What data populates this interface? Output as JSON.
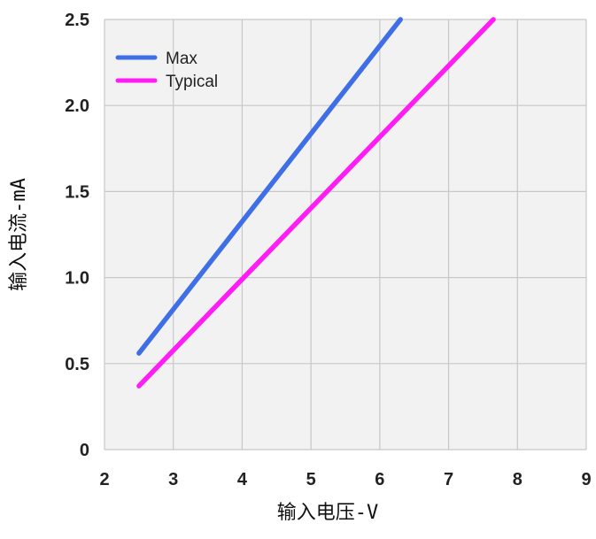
{
  "chart_data": {
    "type": "line",
    "title": "",
    "xlabel": "输入电压-V",
    "ylabel": "输入电流-mA",
    "xlim": [
      2,
      9
    ],
    "ylim": [
      0,
      2.5
    ],
    "x_ticks": [
      "2",
      "3",
      "4",
      "5",
      "6",
      "7",
      "8",
      "9"
    ],
    "y_ticks": [
      "0",
      "0.5",
      "1.0",
      "1.5",
      "2.0",
      "2.5"
    ],
    "grid": true,
    "legend_position": "top-left",
    "series": [
      {
        "name": "Max",
        "color": "#3f6fe6",
        "x": [
          2.5,
          6.3
        ],
        "y": [
          0.56,
          2.5
        ]
      },
      {
        "name": "Typical",
        "color": "#ff1cf5",
        "x": [
          2.5,
          7.65
        ],
        "y": [
          0.37,
          2.5
        ]
      }
    ]
  }
}
